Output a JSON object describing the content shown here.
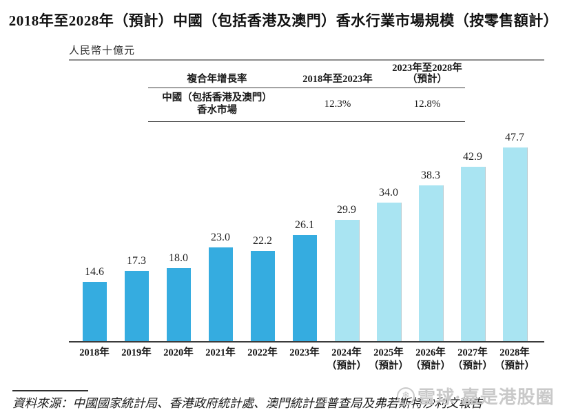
{
  "page": {
    "title": "2018年至2028年（預計）中國（包括香港及澳門）香水行業市場規模（按零售額計）",
    "unit_label": "人民幣十億元",
    "source": "資料來源：中國國家統計局、香港政府統計處、澳門統計暨普查局及弗若斯特沙利文報告"
  },
  "cagr_table": {
    "metric_header": "複合年增長率",
    "period1_header": "2018年至2023年",
    "period2_header_line1": "2023年至2028年",
    "period2_header_line2": "（預計）",
    "row_label_line1": "中國（包括香港及澳門）",
    "row_label_line2": "香水市場",
    "period1_value": "12.3%",
    "period2_value": "12.8%"
  },
  "chart_data": {
    "type": "bar",
    "title": "2018年至2028年（預計）中國（包括香港及澳門）香水行業市場規模（按零售額計）",
    "ylabel": "人民幣十億元",
    "categories": [
      "2018年",
      "2019年",
      "2020年",
      "2021年",
      "2022年",
      "2023年",
      "2024年",
      "2025年",
      "2026年",
      "2027年",
      "2028年"
    ],
    "category_sublabels": [
      "",
      "",
      "",
      "",
      "",
      "",
      "（預計）",
      "（預計）",
      "（預計）",
      "（預計）",
      "（預計）"
    ],
    "values": [
      14.6,
      17.3,
      18.0,
      23.0,
      22.2,
      26.1,
      29.9,
      34.0,
      38.3,
      42.9,
      47.7
    ],
    "value_labels": [
      "14.6",
      "17.3",
      "18.0",
      "23.0",
      "22.2",
      "26.1",
      "29.9",
      "34.0",
      "38.3",
      "42.9",
      "47.7"
    ],
    "historical_count": 6,
    "colors": {
      "historical_bar": "#35ACE0",
      "forecast_bar": "#A9E4F2"
    },
    "ylim": [
      0,
      50
    ],
    "grid": false,
    "legend": "none",
    "value_labels_shown": true
  },
  "watermark": {
    "logo_icon": "snowball-circle-icon",
    "logo_glyph": "❄",
    "text": "雪球·嘉是港股圈",
    "color": "#c9c9c9"
  }
}
